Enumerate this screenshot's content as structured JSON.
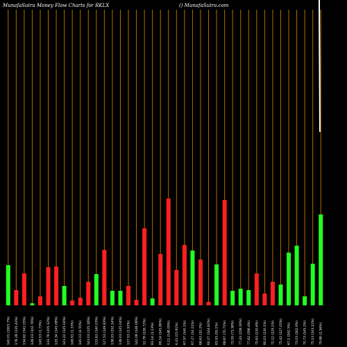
{
  "chart_data": {
    "type": "bar",
    "title": "MunafaSutra  Money Flow  Charts for RKLX",
    "subtitle": "() MunafaSutra.com",
    "categories": [
      "140.01 (1903.7%)",
      "178.28 (135.43%)",
      "134.62 (341.05%)",
      "148.03 (102.76%)",
      "149.53 (1.73%)",
      "133.76 (205.12%)",
      "129.34 (145.08%)",
      "141.22 (145.04%)",
      "146.91 (1.33%)",
      "140.03 (4.55%)",
      "143.03 (125.18%)",
      "133.61 (140.03%)",
      "127.53 (149.83%)",
      "138.93 (152.14%)",
      "138.03 (145.04%)",
      "137.53 (1.92%)",
      "142.08 (148.08%)",
      "12.78 (126.72%)",
      "83.14 (1.13%)",
      "89.14 (145.86%)",
      "0.11 (148.09%)",
      "6.43 (15.91%)",
      "67.97 (140.1%)",
      "67.27 (14.21%)",
      "68.63 (10.2%)",
      "60.27 (144.62%)",
      "83.93 (55.1%)",
      "68.67 (70.71%)",
      "72.09 (73.38%)",
      "77.43 (158.16%)",
      "77.62 (196.4%)",
      "75.63 (130.6%)",
      "80.03 (130.1%)",
      "72.12 (129.1%)",
      "75.42 (127.05%)",
      "67.1 (162.5%)",
      "73.03 (162.9%)",
      "70.73 (145.2%)",
      "75.13 (143.12%)",
      "79.86 (1.56%)"
    ],
    "values": [
      58,
      22,
      46,
      3,
      13,
      55,
      56,
      28,
      7,
      11,
      34,
      45,
      80,
      21,
      21,
      28,
      8,
      111,
      10,
      74,
      154,
      51,
      87,
      79,
      66,
      5,
      59,
      152,
      21,
      24,
      22,
      46,
      17,
      34,
      30,
      76,
      86,
      13,
      60,
      131
    ],
    "colors": [
      "#22ff22",
      "#ff2020",
      "#ff2020",
      "#22ff22",
      "#ff2020",
      "#ff2020",
      "#ff2020",
      "#22ff22",
      "#ff2020",
      "#ff2020",
      "#ff2020",
      "#22ff22",
      "#ff2020",
      "#22ff22",
      "#22ff22",
      "#ff2020",
      "#ff2020",
      "#ff2020",
      "#22ff22",
      "#ff2020",
      "#ff2020",
      "#ff2020",
      "#ff2020",
      "#22ff22",
      "#ff2020",
      "#ff2020",
      "#22ff22",
      "#ff2020",
      "#22ff22",
      "#22ff22",
      "#22ff22",
      "#ff2020",
      "#ff2020",
      "#ff2020",
      "#22ff22",
      "#22ff22",
      "#22ff22",
      "#22ff22",
      "#22ff22",
      "#22ff22"
    ],
    "ylim": [
      0,
      160
    ]
  }
}
